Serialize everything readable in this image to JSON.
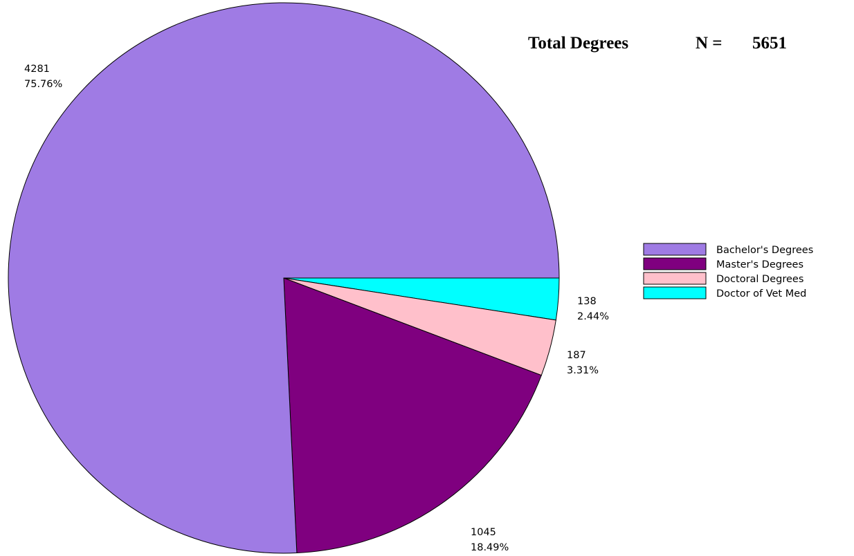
{
  "header": {
    "title": "Total Degrees",
    "n_label": "N =",
    "n_value": "5651"
  },
  "chart_data": {
    "type": "pie",
    "title": "Total Degrees",
    "total": 5651,
    "slices": [
      {
        "name": "Bachelor's Degrees",
        "value": 4281,
        "value_label": "4281",
        "percent_label": "75.76%",
        "color": "#9f7be4"
      },
      {
        "name": "Master's Degrees",
        "value": 1045,
        "value_label": "1045",
        "percent_label": "18.49%",
        "color": "#7f007f"
      },
      {
        "name": "Doctoral Degrees",
        "value": 187,
        "value_label": "187",
        "percent_label": "3.31%",
        "color": "#ffc0cb"
      },
      {
        "name": "Doctor of Vet Med",
        "value": 138,
        "value_label": "138",
        "percent_label": "2.44%",
        "color": "#00ffff"
      }
    ],
    "legend_position": "right",
    "start_angle_deg": 0,
    "direction": "clockwise-from-east"
  }
}
